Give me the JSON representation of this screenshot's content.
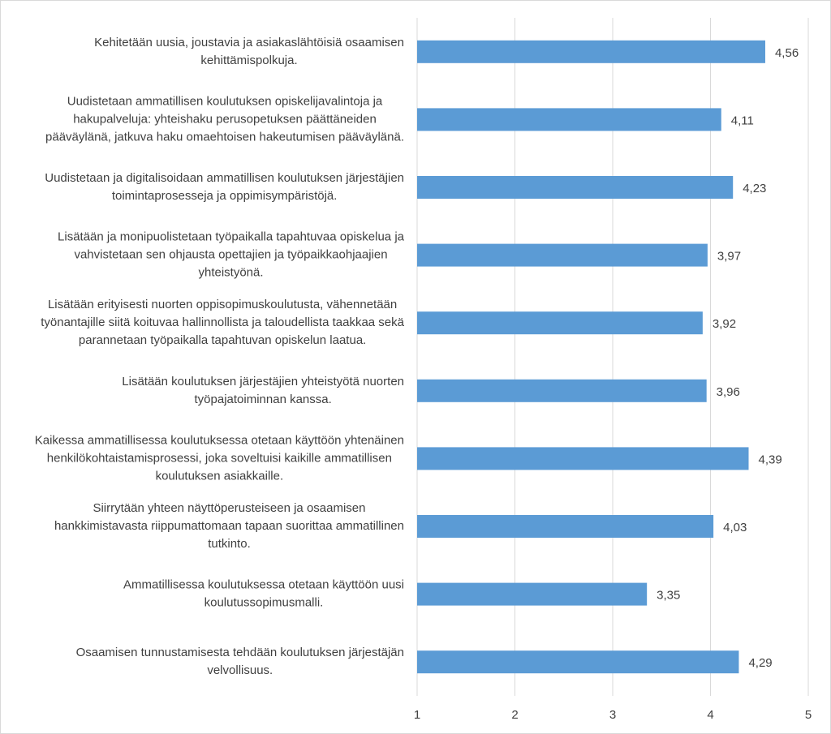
{
  "chart_data": {
    "type": "barh",
    "categories": [
      [
        "Kehitetään uusia, joustavia ja asiakaslähtöisiä osaamisen",
        "kehittämispolkuja."
      ],
      [
        "Uudistetaan ammatillisen koulutuksen opiskelijavalintoja ja",
        "hakupalveluja: yhteishaku perusopetuksen päättäneiden",
        "pääväylänä, jatkuva haku omaehtoisen hakeutumisen pääväylänä."
      ],
      [
        "Uudistetaan ja digitalisoidaan ammatillisen koulutuksen järjestäjien",
        "toimintaprosesseja ja oppimisympäristöjä."
      ],
      [
        "Lisätään ja monipuolistetaan työpaikalla tapahtuvaa opiskelua ja",
        "vahvistetaan sen ohjausta opettajien ja työpaikkaohjaajien",
        "yhteistyönä."
      ],
      [
        "Lisätään erityisesti nuorten oppisopimuskoulutusta, vähennetään",
        "työnantajille siitä koituvaa hallinnollista ja taloudellista taakkaa sekä",
        "parannetaan työpaikalla tapahtuvan opiskelun laatua."
      ],
      [
        "Lisätään koulutuksen järjestäjien yhteistyötä nuorten",
        "työpajatoiminnan kanssa."
      ],
      [
        "Kaikessa ammatillisessa koulutuksessa otetaan käyttöön yhtenäinen",
        "henkilökohtaistamisprosessi, joka soveltuisi kaikille ammatillisen",
        "koulutuksen asiakkaille."
      ],
      [
        "Siirrytään yhteen näyttöperusteiseen ja osaamisen",
        "hankkimistavasta riippumattomaan tapaan suorittaa ammatillinen",
        "tutkinto."
      ],
      [
        "Ammatillisessa koulutuksessa otetaan käyttöön uusi",
        "koulutussopimusmalli."
      ],
      [
        "Osaamisen tunnustamisesta tehdään koulutuksen järjestäjän",
        "velvollisuus."
      ]
    ],
    "values": [
      4.56,
      4.11,
      4.23,
      3.97,
      3.92,
      3.96,
      4.39,
      4.03,
      3.35,
      4.29
    ],
    "value_labels": [
      "4,56",
      "4,11",
      "4,23",
      "3,97",
      "3,92",
      "3,96",
      "4,39",
      "4,03",
      "3,35",
      "4,29"
    ],
    "color": "#5b9bd5",
    "xlim": [
      1,
      5
    ],
    "xticks": [
      1,
      2,
      3,
      4,
      5
    ],
    "grid": true
  }
}
